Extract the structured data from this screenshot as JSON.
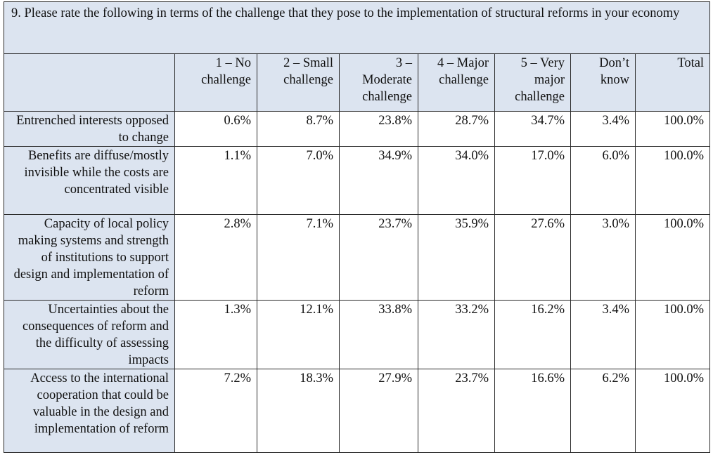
{
  "title": "9. Please rate the following in terms of the challenge that they pose to the implementation of structural reforms in your economy",
  "columns": [
    "",
    "1 – No challenge",
    "2 – Small challenge",
    "3 – Moderate challenge",
    "4 – Major challenge",
    "5 – Very major challenge",
    "Don’t know",
    "Total"
  ],
  "rows": [
    {
      "label": "Entrenched interests opposed to change",
      "values": [
        "0.6%",
        "8.7%",
        "23.8%",
        "28.7%",
        "34.7%",
        "3.4%",
        "100.0%"
      ]
    },
    {
      "label": "Benefits are diffuse/mostly invisible while the costs are concentrated visible",
      "values": [
        "1.1%",
        "7.0%",
        "34.9%",
        "34.0%",
        "17.0%",
        "6.0%",
        "100.0%"
      ]
    },
    {
      "label": "Capacity of local policy making systems and strength of institutions to support design and implementation of reform",
      "values": [
        "2.8%",
        "7.1%",
        "23.7%",
        "35.9%",
        "27.6%",
        "3.0%",
        "100.0%"
      ]
    },
    {
      "label": "Uncertainties about the consequences of reform and the difficulty of assessing impacts",
      "values": [
        "1.3%",
        "12.1%",
        "33.8%",
        "33.2%",
        "16.2%",
        "3.4%",
        "100.0%"
      ]
    },
    {
      "label": "Access to the international cooperation that could be valuable in the design and implementation of reform",
      "values": [
        "7.2%",
        "18.3%",
        "27.9%",
        "23.7%",
        "16.6%",
        "6.2%",
        "100.0%"
      ]
    }
  ]
}
